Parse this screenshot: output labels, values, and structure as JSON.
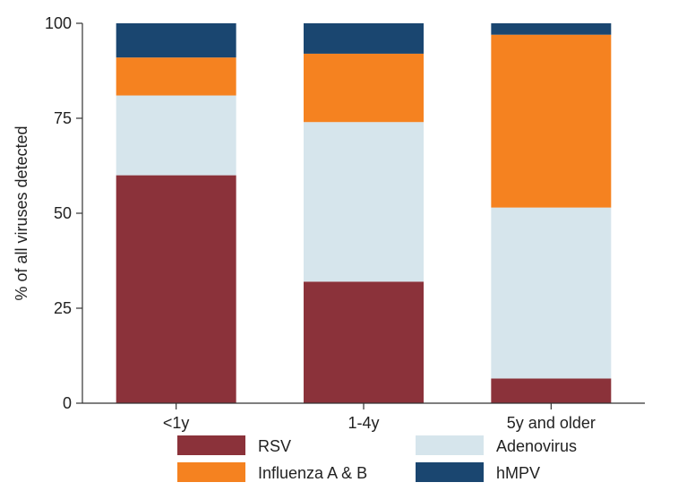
{
  "chart_data": {
    "type": "bar",
    "stacked": true,
    "title": "",
    "xlabel": "",
    "ylabel": "% of all viruses detected",
    "ylim": [
      0,
      100
    ],
    "yticks": [
      0,
      25,
      50,
      75,
      100
    ],
    "grid": false,
    "legend_position": "bottom",
    "categories": [
      "<1y",
      "1-4y",
      "5y and older"
    ],
    "series": [
      {
        "name": "RSV",
        "color": "#8b323a",
        "values": [
          60,
          32,
          6.5
        ]
      },
      {
        "name": "Adenovirus",
        "color": "#d6e5ec",
        "values": [
          21,
          42,
          45
        ]
      },
      {
        "name": "Influenza A & B",
        "color": "#f58220",
        "values": [
          10,
          18,
          45.5
        ]
      },
      {
        "name": "hMPV",
        "color": "#1a4670",
        "values": [
          9,
          8,
          3
        ]
      }
    ],
    "legend_order": [
      "RSV",
      "Adenovirus",
      "Influenza A & B",
      "hMPV"
    ]
  }
}
